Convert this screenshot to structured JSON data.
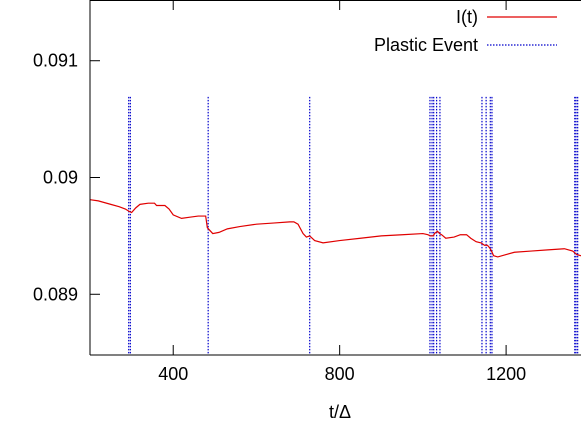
{
  "chart_data": {
    "type": "line",
    "title": "",
    "xlabel": "t/Δ",
    "ylabel": "",
    "xlim": [
      200,
      1380
    ],
    "ylim": [
      0.08848,
      0.09152
    ],
    "x_ticks": [
      400,
      800,
      1200
    ],
    "x_tick_labels": [
      "400",
      "800",
      "1200"
    ],
    "y_ticks": [
      0.089,
      0.09,
      0.091
    ],
    "y_tick_labels": [
      "0.089",
      "0.09",
      "0.091"
    ],
    "grid": false,
    "legend_position": "top-right",
    "colors": {
      "line": "#e00000",
      "events": "#0000cc",
      "frame": "#000000"
    },
    "series": [
      {
        "name": "I(t)",
        "style": "solid",
        "x": [
          200,
          220,
          250,
          270,
          285,
          294,
          300,
          310,
          320,
          340,
          355,
          360,
          380,
          390,
          400,
          420,
          440,
          460,
          478,
          482,
          495,
          510,
          530,
          560,
          600,
          640,
          680,
          690,
          700,
          712,
          720,
          728,
          740,
          760,
          800,
          850,
          900,
          950,
          1000,
          1012,
          1018,
          1025,
          1028,
          1035,
          1040,
          1045,
          1055,
          1075,
          1090,
          1105,
          1115,
          1128,
          1140,
          1148,
          1155,
          1160,
          1165,
          1170,
          1180,
          1200,
          1220,
          1260,
          1300,
          1340,
          1360,
          1370,
          1380
        ],
        "y": [
          0.08981,
          0.0898,
          0.08977,
          0.08975,
          0.08973,
          0.08971,
          0.0897,
          0.08974,
          0.08977,
          0.08978,
          0.08978,
          0.08976,
          0.08976,
          0.08973,
          0.08968,
          0.08965,
          0.08966,
          0.08967,
          0.08967,
          0.08957,
          0.08952,
          0.08953,
          0.08956,
          0.08958,
          0.0896,
          0.08961,
          0.08962,
          0.08962,
          0.0896,
          0.08952,
          0.08949,
          0.0895,
          0.08946,
          0.08944,
          0.08946,
          0.08948,
          0.0895,
          0.08951,
          0.08952,
          0.08951,
          0.0895,
          0.0895,
          0.08952,
          0.08954,
          0.08952,
          0.08951,
          0.08948,
          0.08949,
          0.08951,
          0.08951,
          0.08948,
          0.08945,
          0.08944,
          0.08942,
          0.08942,
          0.0894,
          0.08937,
          0.08933,
          0.08932,
          0.08934,
          0.08936,
          0.08937,
          0.08938,
          0.08939,
          0.08937,
          0.08934,
          0.08933
        ]
      }
    ],
    "events": {
      "name": "Plastic Event",
      "style": "dotted",
      "y_range": [
        0.08848,
        0.09069
      ],
      "x": [
        293,
        297,
        484,
        728,
        1017,
        1022,
        1026,
        1033,
        1041,
        1142,
        1152,
        1162,
        1166,
        1365,
        1368,
        1372
      ]
    }
  }
}
